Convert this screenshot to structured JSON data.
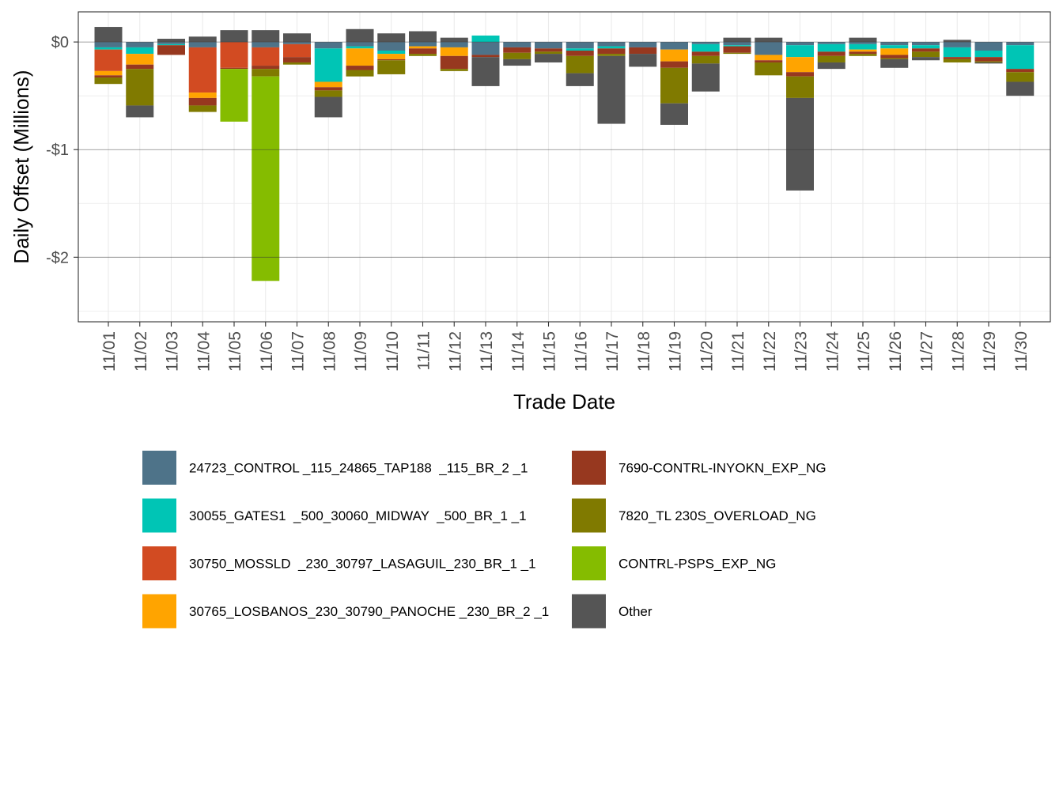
{
  "chart_data": {
    "type": "stacked-bar",
    "title": "",
    "xlabel": "Trade Date",
    "ylabel": "Daily Offset (Millions)",
    "ylim": [
      -2.6,
      0.28
    ],
    "yticks": [
      0,
      -1,
      -2
    ],
    "ytick_labels": [
      "$0",
      "-$1",
      "-$2"
    ],
    "grid": true,
    "legend_position": "bottom",
    "categories": [
      "11/01",
      "11/02",
      "11/03",
      "11/04",
      "11/05",
      "11/06",
      "11/07",
      "11/08",
      "11/09",
      "11/10",
      "11/11",
      "11/12",
      "11/13",
      "11/14",
      "11/15",
      "11/16",
      "11/17",
      "11/18",
      "11/19",
      "11/20",
      "11/21",
      "11/22",
      "11/23",
      "11/24",
      "11/25",
      "11/26",
      "11/27",
      "11/28",
      "11/29",
      "11/30"
    ],
    "series": [
      {
        "name": "24723_CONTROL _115_24865_TAP188  _115_BR_2 _1",
        "color": "#4e7389",
        "values": [
          -0.05,
          -0.05,
          -0.02,
          -0.05,
          0,
          -0.05,
          -0.02,
          -0.06,
          -0.04,
          -0.08,
          -0.04,
          -0.05,
          -0.12,
          -0.05,
          -0.06,
          -0.06,
          -0.04,
          -0.05,
          -0.07,
          -0.02,
          -0.03,
          -0.12,
          -0.03,
          -0.02,
          -0.02,
          -0.03,
          -0.03,
          -0.05,
          -0.08,
          -0.03
        ]
      },
      {
        "name": "30055_GATES1  _500_30060_MIDWAY  _500_BR_1 _1",
        "color": "#00c5b5",
        "values": [
          -0.02,
          -0.06,
          -0.01,
          0,
          0,
          0,
          0,
          -0.31,
          -0.02,
          -0.03,
          0,
          0,
          0.06,
          0,
          0,
          -0.02,
          -0.02,
          0,
          0,
          -0.07,
          -0.01,
          0,
          -0.11,
          -0.07,
          -0.05,
          -0.03,
          -0.03,
          -0.09,
          -0.06,
          -0.22
        ]
      },
      {
        "name": "30750_MOSSLD  _230_30797_LASAGUIL_230_BR_1 _1",
        "color": "#d24b22",
        "values": [
          -0.2,
          0,
          0,
          -0.42,
          -0.24,
          -0.17,
          -0.12,
          0,
          0,
          0,
          0,
          0,
          0,
          0,
          0,
          0,
          0,
          0,
          0,
          0,
          0,
          0,
          0,
          0,
          0,
          0,
          0,
          0,
          0,
          0
        ]
      },
      {
        "name": "30765_LOSBANOS_230_30790_PANOCHE _230_BR_2 _1",
        "color": "#ffa400",
        "values": [
          -0.04,
          -0.1,
          0,
          -0.05,
          0,
          0,
          0,
          -0.05,
          -0.16,
          -0.05,
          -0.02,
          -0.08,
          0,
          0,
          0,
          0,
          0,
          0,
          -0.11,
          0,
          0,
          -0.05,
          -0.14,
          0,
          -0.02,
          -0.06,
          0,
          0,
          0,
          0
        ]
      },
      {
        "name": "7690-CONTRL-INYOKN_EXP_NG",
        "color": "#97381f",
        "values": [
          -0.02,
          -0.04,
          -0.09,
          -0.07,
          -0.01,
          -0.03,
          -0.05,
          -0.03,
          -0.04,
          -0.01,
          -0.05,
          -0.12,
          -0.02,
          -0.05,
          -0.03,
          -0.05,
          -0.05,
          -0.06,
          -0.06,
          -0.04,
          -0.06,
          -0.02,
          -0.04,
          -0.04,
          -0.02,
          -0.03,
          -0.03,
          -0.02,
          -0.04,
          -0.03
        ]
      },
      {
        "name": "7820_TL 230S_OVERLOAD_NG",
        "color": "#807a00",
        "values": [
          -0.06,
          -0.34,
          0,
          -0.06,
          0,
          -0.07,
          -0.02,
          -0.06,
          -0.06,
          -0.13,
          -0.02,
          -0.02,
          0,
          -0.06,
          -0.02,
          -0.16,
          -0.02,
          0,
          -0.33,
          -0.07,
          -0.01,
          -0.12,
          -0.2,
          -0.06,
          -0.02,
          -0.01,
          -0.05,
          -0.03,
          -0.01,
          -0.09
        ]
      },
      {
        "name": "CONTRL-PSPS_EXP_NG",
        "color": "#85bc00",
        "values": [
          0,
          0,
          0,
          0,
          -0.49,
          -1.9,
          0,
          0,
          0,
          0,
          0,
          0,
          0,
          0,
          0,
          0,
          0,
          0,
          0,
          0,
          0,
          0,
          0,
          0,
          0,
          0,
          0,
          0,
          0,
          0
        ]
      },
      {
        "name": "Other",
        "color": "#555555",
        "values": [
          0.14,
          -0.11,
          0.03,
          0.05,
          0.11,
          0.11,
          0.08,
          -0.19,
          0.12,
          0.08,
          0.1,
          0.04,
          -0.27,
          -0.06,
          -0.08,
          -0.12,
          -0.63,
          -0.12,
          -0.2,
          -0.26,
          0.04,
          0.04,
          -0.86,
          -0.06,
          0.04,
          -0.08,
          -0.03,
          0.02,
          -0.01,
          -0.13
        ]
      }
    ]
  }
}
